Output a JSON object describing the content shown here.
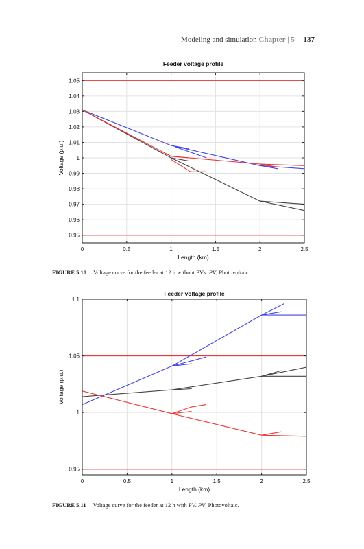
{
  "running_head": {
    "title": "Modeling and simulation",
    "chapter": "Chapter | 5",
    "page": "137"
  },
  "figures": [
    {
      "label": "FIGURE 5.10",
      "caption_main": "Voltage curve for the feeder at 12 h without PVs.",
      "caption_abbrev": "PV",
      "caption_tail": ", Photovoltaic."
    },
    {
      "label": "FIGURE 5.11",
      "caption_main": "Voltage curve for the feeder at 12 h with PV.",
      "caption_abbrev": "PV",
      "caption_tail": ", Photovoltaic."
    }
  ],
  "chart_data": [
    {
      "type": "line",
      "title": "Feeder voltage profile",
      "xlabel": "Length (km)",
      "ylabel": "Voltage (p.u.)",
      "xlim": [
        0,
        2.5
      ],
      "ylim": [
        0.945,
        1.055
      ],
      "xticks": [
        0,
        0.5,
        1,
        1.5,
        2,
        2.5
      ],
      "xtick_labels": [
        "0",
        "0.5",
        "1",
        "1.5",
        "2",
        "2.5"
      ],
      "yticks": [
        0.95,
        0.96,
        0.97,
        0.98,
        0.99,
        1,
        1.01,
        1.02,
        1.03,
        1.04,
        1.05
      ],
      "ytick_labels": [
        "0.95",
        "0.96",
        "0.97",
        "0.98",
        "0.99",
        "1",
        "1.01",
        "1.02",
        "1.03",
        "1.04",
        "1.05"
      ],
      "grid": true,
      "colors": {
        "red": "#ee3333",
        "blue": "#4444dd",
        "black": "#444444"
      },
      "limit_lines": [
        {
          "y": 1.05,
          "color": "red"
        },
        {
          "y": 0.95,
          "color": "red"
        }
      ],
      "series": [
        {
          "color": "blue",
          "points": [
            [
              0,
              1.031
            ],
            [
              1,
              1.008
            ],
            [
              2,
              0.995
            ],
            [
              2.5,
              0.993
            ]
          ]
        },
        {
          "color": "blue",
          "points": [
            [
              1,
              1.008
            ],
            [
              1.2,
              1.006
            ]
          ]
        },
        {
          "color": "blue",
          "points": [
            [
              1.05,
              1.007
            ],
            [
              1.4,
              1.0
            ]
          ]
        },
        {
          "color": "blue",
          "points": [
            [
              2,
              0.995
            ],
            [
              2.2,
              0.993
            ]
          ]
        },
        {
          "color": "black",
          "points": [
            [
              0,
              1.031
            ],
            [
              1,
              1.0
            ],
            [
              2,
              0.972
            ],
            [
              2.5,
              0.966
            ]
          ]
        },
        {
          "color": "black",
          "points": [
            [
              1,
              1.0
            ],
            [
              1.2,
              0.998
            ]
          ]
        },
        {
          "color": "black",
          "points": [
            [
              2,
              0.972
            ],
            [
              2.5,
              0.97
            ]
          ]
        },
        {
          "color": "red",
          "points": [
            [
              0,
              1.031
            ],
            [
              1,
              1.001
            ],
            [
              2,
              0.996
            ],
            [
              2.5,
              0.995
            ]
          ]
        },
        {
          "color": "red",
          "points": [
            [
              1,
              1.001
            ],
            [
              1.2,
              1.0
            ]
          ]
        },
        {
          "color": "red",
          "points": [
            [
              1,
              0.999
            ],
            [
              1.22,
              0.991
            ],
            [
              1.4,
              0.991
            ]
          ]
        },
        {
          "color": "red",
          "points": [
            [
              2,
              0.996
            ],
            [
              2.2,
              0.994
            ]
          ]
        }
      ]
    },
    {
      "type": "line",
      "title": "Feeder voltage profile",
      "xlabel": "Length (km)",
      "ylabel": "Voltage (p.u.)",
      "xlim": [
        0,
        2.5
      ],
      "ylim": [
        0.945,
        1.1
      ],
      "xticks": [
        0,
        0.5,
        1,
        1.5,
        2,
        2.5
      ],
      "xtick_labels": [
        "0",
        "0.5",
        "1",
        "1.5",
        "2",
        "2.5"
      ],
      "yticks": [
        0.95,
        1,
        1.05,
        1.1
      ],
      "ytick_labels": [
        "0.95",
        "1",
        "1.05",
        "1.1"
      ],
      "grid": true,
      "colors": {
        "red": "#ee3333",
        "blue": "#4444dd",
        "black": "#444444"
      },
      "limit_lines": [
        {
          "y": 1.05,
          "color": "red"
        },
        {
          "y": 0.95,
          "color": "red"
        }
      ],
      "series": [
        {
          "color": "blue",
          "points": [
            [
              0,
              1.007
            ],
            [
              1,
              1.041
            ],
            [
              2,
              1.086
            ],
            [
              2.25,
              1.096
            ]
          ]
        },
        {
          "color": "blue",
          "points": [
            [
              1,
              1.041
            ],
            [
              1.38,
              1.049
            ]
          ]
        },
        {
          "color": "blue",
          "points": [
            [
              1,
              1.041
            ],
            [
              1.22,
              1.043
            ]
          ]
        },
        {
          "color": "blue",
          "points": [
            [
              2,
              1.086
            ],
            [
              2.5,
              1.086
            ]
          ]
        },
        {
          "color": "blue",
          "points": [
            [
              2,
              1.086
            ],
            [
              2.22,
              1.089
            ]
          ]
        },
        {
          "color": "black",
          "points": [
            [
              0,
              1.014
            ],
            [
              1,
              1.02
            ],
            [
              2,
              1.032
            ],
            [
              2.5,
              1.04
            ]
          ]
        },
        {
          "color": "black",
          "points": [
            [
              1,
              1.02
            ],
            [
              1.22,
              1.021
            ]
          ]
        },
        {
          "color": "black",
          "points": [
            [
              2,
              1.032
            ],
            [
              2.5,
              1.032
            ]
          ]
        },
        {
          "color": "black",
          "points": [
            [
              2,
              1.032
            ],
            [
              2.22,
              1.037
            ]
          ]
        },
        {
          "color": "red",
          "points": [
            [
              0,
              1.019
            ],
            [
              1,
              0.999
            ],
            [
              2,
              0.98
            ],
            [
              2.5,
              0.979
            ]
          ]
        },
        {
          "color": "red",
          "points": [
            [
              1,
              0.999
            ],
            [
              1.22,
              1.001
            ]
          ]
        },
        {
          "color": "red",
          "points": [
            [
              1,
              0.999
            ],
            [
              1.22,
              1.005
            ],
            [
              1.38,
              1.007
            ]
          ]
        },
        {
          "color": "red",
          "points": [
            [
              2,
              0.98
            ],
            [
              2.22,
              0.983
            ]
          ]
        }
      ]
    }
  ]
}
